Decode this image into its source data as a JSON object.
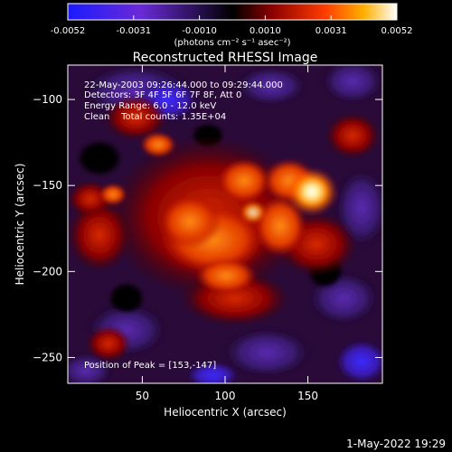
{
  "colorbar": {
    "ticks": [
      "-0.0052",
      "-0.0031",
      "-0.0010",
      "0.0010",
      "0.0031",
      "0.0052"
    ],
    "unit_label": "(photons cm⁻² s⁻¹ asec⁻²)",
    "colors": [
      "#2a1aff",
      "#7a3ad0",
      "#000000",
      "#7a0000",
      "#ff2a00",
      "#ffaa00",
      "#ffffff"
    ]
  },
  "plot": {
    "title": "Reconstructed RHESSI Image",
    "xlabel": "Heliocentric X (arcsec)",
    "ylabel": "Heliocentric Y (arcsec)",
    "x_ticks": [
      "50",
      "100",
      "150"
    ],
    "y_ticks": [
      "−100",
      "−150",
      "−200",
      "−250"
    ],
    "x_range": [
      5,
      195
    ],
    "y_range": [
      -265,
      -80
    ]
  },
  "annotations": {
    "time_range": "22-May-2003 09:26:44.000 to 09:29:44.000",
    "detectors": "Detectors: 3F 4F 5F 6F 7F 8F, Att 0",
    "energy": "Energy Range: 6.0 - 12.0 keV",
    "method": "Clean    Total counts: 1.35E+04",
    "peak": "Position of Peak = [153,-147]"
  },
  "footer": {
    "date": "1-May-2022 19:29"
  }
}
